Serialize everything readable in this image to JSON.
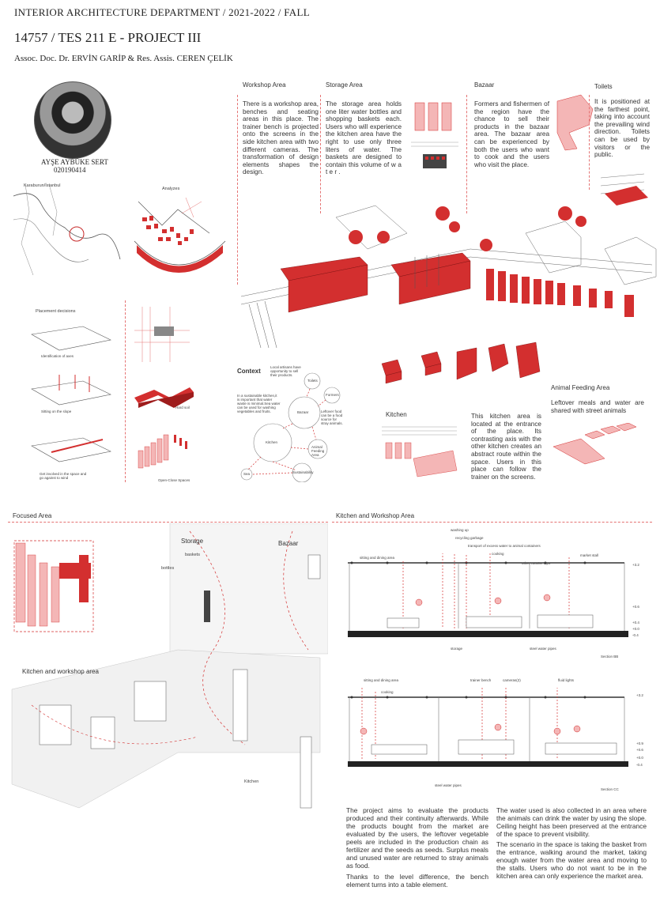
{
  "header": {
    "department": "INTERIOR ARCHITECTURE DEPARTMENT / 2021-2022 / FALL",
    "course": "14757 / TES 211 E - PROJECT III",
    "instructors": "Assoc. Doc. Dr. ERVİN GARİP & Res. Assis. CEREN ÇELİK"
  },
  "student": {
    "name": "AYŞE AYBÜKE SERT",
    "number": "020190414"
  },
  "left_panel": {
    "map_label": "Karaburun/İstanbul",
    "analyzes_label": "Analyzes",
    "placement_title": "Placement decisions",
    "step1": "Identification of axes",
    "step2": "Sitting on the slope",
    "step3": "Get involved in the space and go against to wind",
    "step4": "Hard soil",
    "step5": "Open-Close Spaces"
  },
  "areas": {
    "workshop": {
      "title": "Workshop Area",
      "text": "There is a workshop area, benches and seating areas in this place. The trainer bench is projected onto the screens in the side kitchen area with two different cameras. The transformation of design elements shapes the design."
    },
    "storage": {
      "title": "Storage Area",
      "text": "The storage area holds one liter water bottles and shopping baskets each. Users who will experience the kitchen area have the right to use only three liters of water. The baskets are designed to contain this volume of w a t e r ."
    },
    "bazaar": {
      "title": "Bazaar",
      "text": "Formers and fishermen of the region have the chance to sell their products in the bazaar area. The bazaar area can be experienced by both the users who want to cook and the users who visit the place."
    },
    "toilets": {
      "title": "Toilets",
      "text": "It is positioned at the farthest point, taking into account the prevailing wind direction. Toilets can be used by visitors or the public."
    },
    "kitchen": {
      "title": "Kitchen",
      "text": "This kitchen area is located at the entrance of the place. Its contrasting axis with the other kitchen creates an abstract route within the space. Users in this place can follow the trainer on the screens."
    },
    "animal": {
      "title": "Animal Feeding Area",
      "text": "Leftover meals and water are shared with street animals"
    }
  },
  "context": {
    "title": "Context",
    "note1": "Local artisans have opportunity to sell their products.",
    "note2": "In a sustainable kitchen,it is important that water waste is minimal.Sea water can be used for washing vegetables and fruits.",
    "note3": "Leftover food can be a food source for stray animals.",
    "nodes": [
      "Toilets",
      "Formers",
      "Bazaar",
      "Kitchen",
      "Animal Feeding Area",
      "Sea",
      "Sustainability"
    ]
  },
  "focused": {
    "title": "Focused Area",
    "storage": "Storage",
    "baskets": "baskets",
    "bottles": "bottles",
    "bazaar": "Bazaar",
    "kitchen_workshop": "Kitchen and workshop area",
    "kitchen": "Kitchen"
  },
  "sections": {
    "title": "Kitchen and Workshop Area",
    "a_labels": [
      "washing up",
      "recycling garbage",
      "transport of excess water to animal containers",
      "cooking",
      "market stall",
      "other counter tops",
      "sitting and dining area",
      "storage",
      "steel water pipes"
    ],
    "a_name": "Section BB",
    "b_labels": [
      "sitting and dining area",
      "cooking",
      "trainer bench",
      "cameras(2)",
      "fluid lights",
      "steel water pipes"
    ],
    "b_name": "Section CC",
    "levels_a": [
      "+3.2",
      "+0.6",
      "+0.4",
      "+0.0",
      "-0.4",
      "-0.6",
      "-0.5"
    ],
    "levels_b": [
      "+3.2",
      "+0.9",
      "+0.6",
      "+0.0",
      "-0.4"
    ]
  },
  "bottom_text": {
    "col1_p1": "The project aims to evaluate the products produced and their continuity afterwards. While the products bought from the market are evaluated by the users, the leftover vegetable peels are included in the production chain as fertilizer and the seeds as seeds. Surplus meals and unused water are returned to stray animals as food.",
    "col1_p2": "Thanks to the level difference, the bench element turns into a table element.",
    "col2_p1": "The water used is also collected in an area where the animals can drink the water by using the slope. Ceiling height has been preserved at the entrance of the space to prevent visibility.",
    "col2_p2": "The scenario in the space is taking the basket from the entrance, walking around the market, taking enough water from the water area and moving to the stalls. Users who do not want to be in the kitchen area can only experience the market area."
  },
  "colors": {
    "accent": "#d32f2f",
    "accent_light": "#f4b6b6",
    "line": "#555555"
  }
}
